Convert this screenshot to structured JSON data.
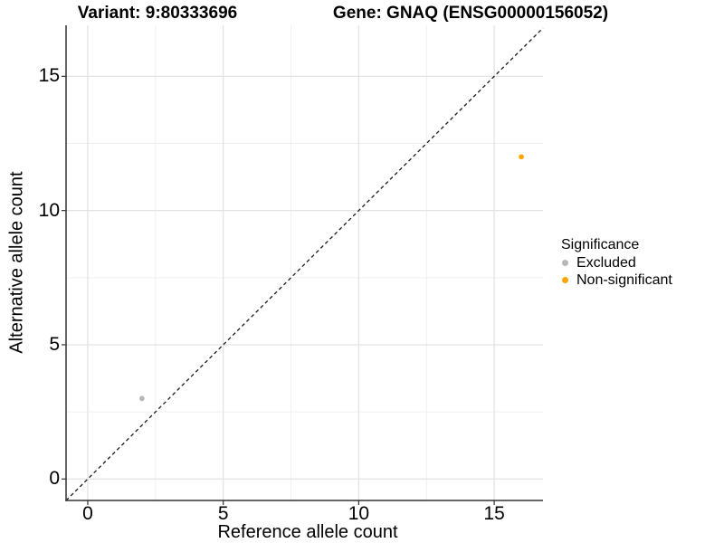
{
  "page": {
    "background": "#FFFFFF"
  },
  "chart_data": {
    "type": "scatter",
    "titles": [
      "Variant: 9:80333696",
      "Gene: GNAQ (ENSG00000156052)"
    ],
    "xlabel": "Reference allele count",
    "ylabel": "Alternative allele count",
    "legend_title": "Significance",
    "legend_position": "right",
    "xlim": [
      -0.8,
      16.8
    ],
    "ylim": [
      -0.8,
      16.9
    ],
    "x_ticks": [
      0,
      5,
      10,
      15
    ],
    "y_ticks": [
      0,
      5,
      10,
      15
    ],
    "x_minor_ticks": [
      2.5,
      7.5,
      12.5
    ],
    "y_minor_ticks": [
      2.5,
      7.5,
      12.5
    ],
    "grid": true,
    "reference_line": {
      "equation": "y = x",
      "style": "dashed",
      "color": "#1A1A1A"
    },
    "series": [
      {
        "name": "Excluded",
        "color": "#B8B8B8",
        "points": [
          {
            "x": 2,
            "y": 3
          }
        ]
      },
      {
        "name": "Non-significant",
        "color": "#FFA500",
        "points": [
          {
            "x": 16,
            "y": 12
          }
        ]
      }
    ],
    "colors": {
      "grid_major": "#E3E3E3",
      "grid_minor": "#EFEFEF",
      "axis": "#333333",
      "text": "#000000"
    }
  }
}
